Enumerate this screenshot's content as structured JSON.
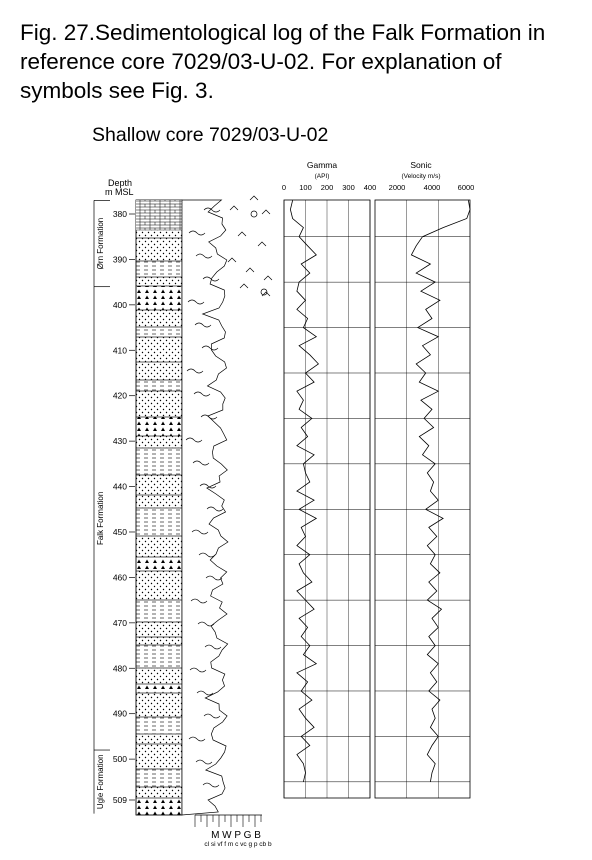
{
  "caption": "Fig. 27.Sedimentological log of the Falk Formation in reference core 7029/03-U-02. For explanation of symbols see Fig. 3.",
  "subtitle": "Shallow core 7029/03-U-02",
  "depth_axis": {
    "label_line1": "Depth",
    "label_line2": "m MSL",
    "ticks": [
      "380",
      "390",
      "400",
      "410",
      "420",
      "430",
      "440",
      "450",
      "460",
      "470",
      "480",
      "490",
      "500",
      "509"
    ]
  },
  "formations": [
    {
      "name": "Ørn Formation",
      "from": 377,
      "to": 396
    },
    {
      "name": "Falk Formation",
      "from": 396,
      "to": 498
    },
    {
      "name": "Ugle Formation",
      "from": 498,
      "to": 512
    }
  ],
  "gamma": {
    "title": "Gamma",
    "unit": "(API)",
    "ticks": [
      "0",
      "100",
      "200",
      "300",
      "400"
    ]
  },
  "sonic": {
    "title": "Sonic",
    "unit": "(Velocity m/s)",
    "ticks": [
      "2000",
      "4000",
      "6000"
    ]
  },
  "grain_scale": {
    "major": [
      "M",
      "W",
      "P",
      "G",
      "B"
    ],
    "minor": "cl si vf f m c vc g p cb b"
  },
  "chart_data": {
    "type": "line",
    "y_axis": "Depth (m MSL)",
    "ylim": [
      377,
      512
    ],
    "series": [
      {
        "name": "Gamma",
        "unit": "API",
        "xlim": [
          0,
          400
        ],
        "depth": [
          377,
          379,
          381,
          383,
          385,
          387,
          389,
          391,
          393,
          395,
          397,
          399,
          401,
          403,
          405,
          407,
          409,
          411,
          413,
          415,
          417,
          419,
          421,
          423,
          425,
          427,
          429,
          431,
          433,
          435,
          437,
          439,
          441,
          443,
          445,
          447,
          449,
          451,
          453,
          455,
          457,
          459,
          461,
          463,
          465,
          467,
          469,
          471,
          473,
          475,
          477,
          479,
          481,
          483,
          485,
          487,
          489,
          491,
          493,
          495,
          497,
          499,
          501,
          503,
          505
        ],
        "values": [
          40,
          30,
          40,
          90,
          70,
          110,
          150,
          80,
          120,
          70,
          60,
          100,
          60,
          110,
          90,
          150,
          70,
          120,
          160,
          100,
          140,
          60,
          90,
          70,
          130,
          80,
          110,
          60,
          140,
          90,
          100,
          120,
          60,
          140,
          70,
          150,
          80,
          100,
          60,
          120,
          70,
          90,
          130,
          60,
          100,
          140,
          70,
          110,
          80,
          120,
          90,
          150,
          60,
          110,
          80,
          130,
          70,
          100,
          140,
          80,
          120,
          60,
          90,
          100,
          90
        ]
      },
      {
        "name": "Sonic",
        "unit": "m/s",
        "xlim": [
          0,
          6000
        ],
        "depth": [
          377,
          379,
          381,
          383,
          385,
          387,
          389,
          391,
          393,
          395,
          397,
          399,
          401,
          403,
          405,
          407,
          409,
          411,
          413,
          415,
          417,
          419,
          421,
          423,
          425,
          427,
          429,
          431,
          433,
          435,
          437,
          439,
          441,
          443,
          445,
          447,
          449,
          451,
          453,
          455,
          457,
          459,
          461,
          463,
          465,
          467,
          469,
          471,
          473,
          475,
          477,
          479,
          481,
          483,
          485,
          487,
          489,
          491,
          493,
          495,
          497,
          499,
          501,
          503,
          505
        ],
        "values": [
          5900,
          6000,
          5800,
          4300,
          3000,
          2600,
          2300,
          3500,
          2600,
          3800,
          2900,
          4100,
          3200,
          3600,
          2700,
          4000,
          3000,
          3500,
          2600,
          3200,
          2800,
          4000,
          2900,
          3600,
          3100,
          3700,
          2800,
          3400,
          3000,
          3800,
          3300,
          3700,
          3500,
          4000,
          3200,
          4300,
          3400,
          3900,
          3300,
          3800,
          3500,
          4100,
          3400,
          3900,
          3300,
          4200,
          3600,
          4000,
          3400,
          3800,
          3300,
          4000,
          3500,
          3900,
          3400,
          4100,
          3600,
          3800,
          3500,
          4000,
          3600,
          3300,
          3800,
          3600,
          3500
        ]
      }
    ]
  }
}
